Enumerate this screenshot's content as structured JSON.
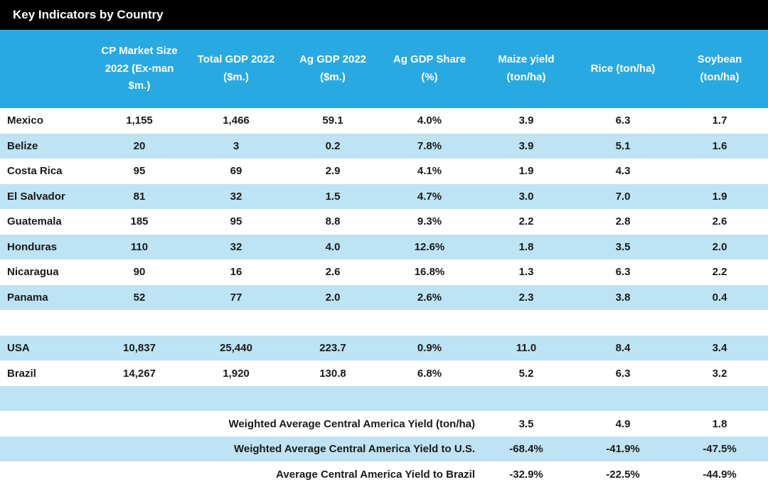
{
  "title": "Key Indicators by Country",
  "colors": {
    "title_bg": "#000000",
    "title_text": "#FFFFFF",
    "header_bg": "#29A9E1",
    "header_text": "#FFFFFF",
    "row_alt_bg": "#BDE3F4",
    "row_bg": "#FFFFFF",
    "body_text": "#1A1A1A"
  },
  "chart_data": {
    "type": "table",
    "title": "Key Indicators by Country",
    "columns": [
      "CP Market Size 2022 (Ex-man $m.)",
      "Total GDP 2022 ($m.)",
      "Ag GDP 2022 ($m.)",
      "Ag GDP Share (%)",
      "Maize yield (ton/ha)",
      "Rice (ton/ha)",
      "Soybean (ton/ha)"
    ],
    "rows": [
      {
        "kind": "data",
        "country": "Mexico",
        "values": [
          "1,155",
          "1,466",
          "59.1",
          "4.0%",
          "3.9",
          "6.3",
          "1.7"
        ]
      },
      {
        "kind": "data",
        "country": "Belize",
        "values": [
          "20",
          "3",
          "0.2",
          "7.8%",
          "3.9",
          "5.1",
          "1.6"
        ]
      },
      {
        "kind": "data",
        "country": "Costa Rica",
        "values": [
          "95",
          "69",
          "2.9",
          "4.1%",
          "1.9",
          "4.3",
          ""
        ]
      },
      {
        "kind": "data",
        "country": "El Salvador",
        "values": [
          "81",
          "32",
          "1.5",
          "4.7%",
          "3.0",
          "7.0",
          "1.9"
        ]
      },
      {
        "kind": "data",
        "country": "Guatemala",
        "values": [
          "185",
          "95",
          "8.8",
          "9.3%",
          "2.2",
          "2.8",
          "2.6"
        ]
      },
      {
        "kind": "data",
        "country": "Honduras",
        "values": [
          "110",
          "32",
          "4.0",
          "12.6%",
          "1.8",
          "3.5",
          "2.0"
        ]
      },
      {
        "kind": "data",
        "country": "Nicaragua",
        "values": [
          "90",
          "16",
          "2.6",
          "16.8%",
          "1.3",
          "6.3",
          "2.2"
        ]
      },
      {
        "kind": "data",
        "country": "Panama",
        "values": [
          "52",
          "77",
          "2.0",
          "2.6%",
          "2.3",
          "3.8",
          "0.4"
        ]
      },
      {
        "kind": "blank"
      },
      {
        "kind": "data",
        "country": "USA",
        "values": [
          "10,837",
          "25,440",
          "223.7",
          "0.9%",
          "11.0",
          "8.4",
          "3.4"
        ]
      },
      {
        "kind": "data",
        "country": "Brazil",
        "values": [
          "14,267",
          "1,920",
          "130.8",
          "6.8%",
          "5.2",
          "6.3",
          "3.2"
        ]
      },
      {
        "kind": "blank"
      },
      {
        "kind": "summary",
        "label": "Weighted Average Central America Yield (ton/ha)",
        "values": [
          "3.5",
          "4.9",
          "1.8"
        ]
      },
      {
        "kind": "summary",
        "label": "Weighted Average Central America Yield to U.S.",
        "values": [
          "-68.4%",
          "-41.9%",
          "-47.5%"
        ]
      },
      {
        "kind": "summary",
        "label": "Average Central America Yield to Brazil",
        "values": [
          "-32.9%",
          "-22.5%",
          "-44.9%"
        ]
      }
    ]
  }
}
